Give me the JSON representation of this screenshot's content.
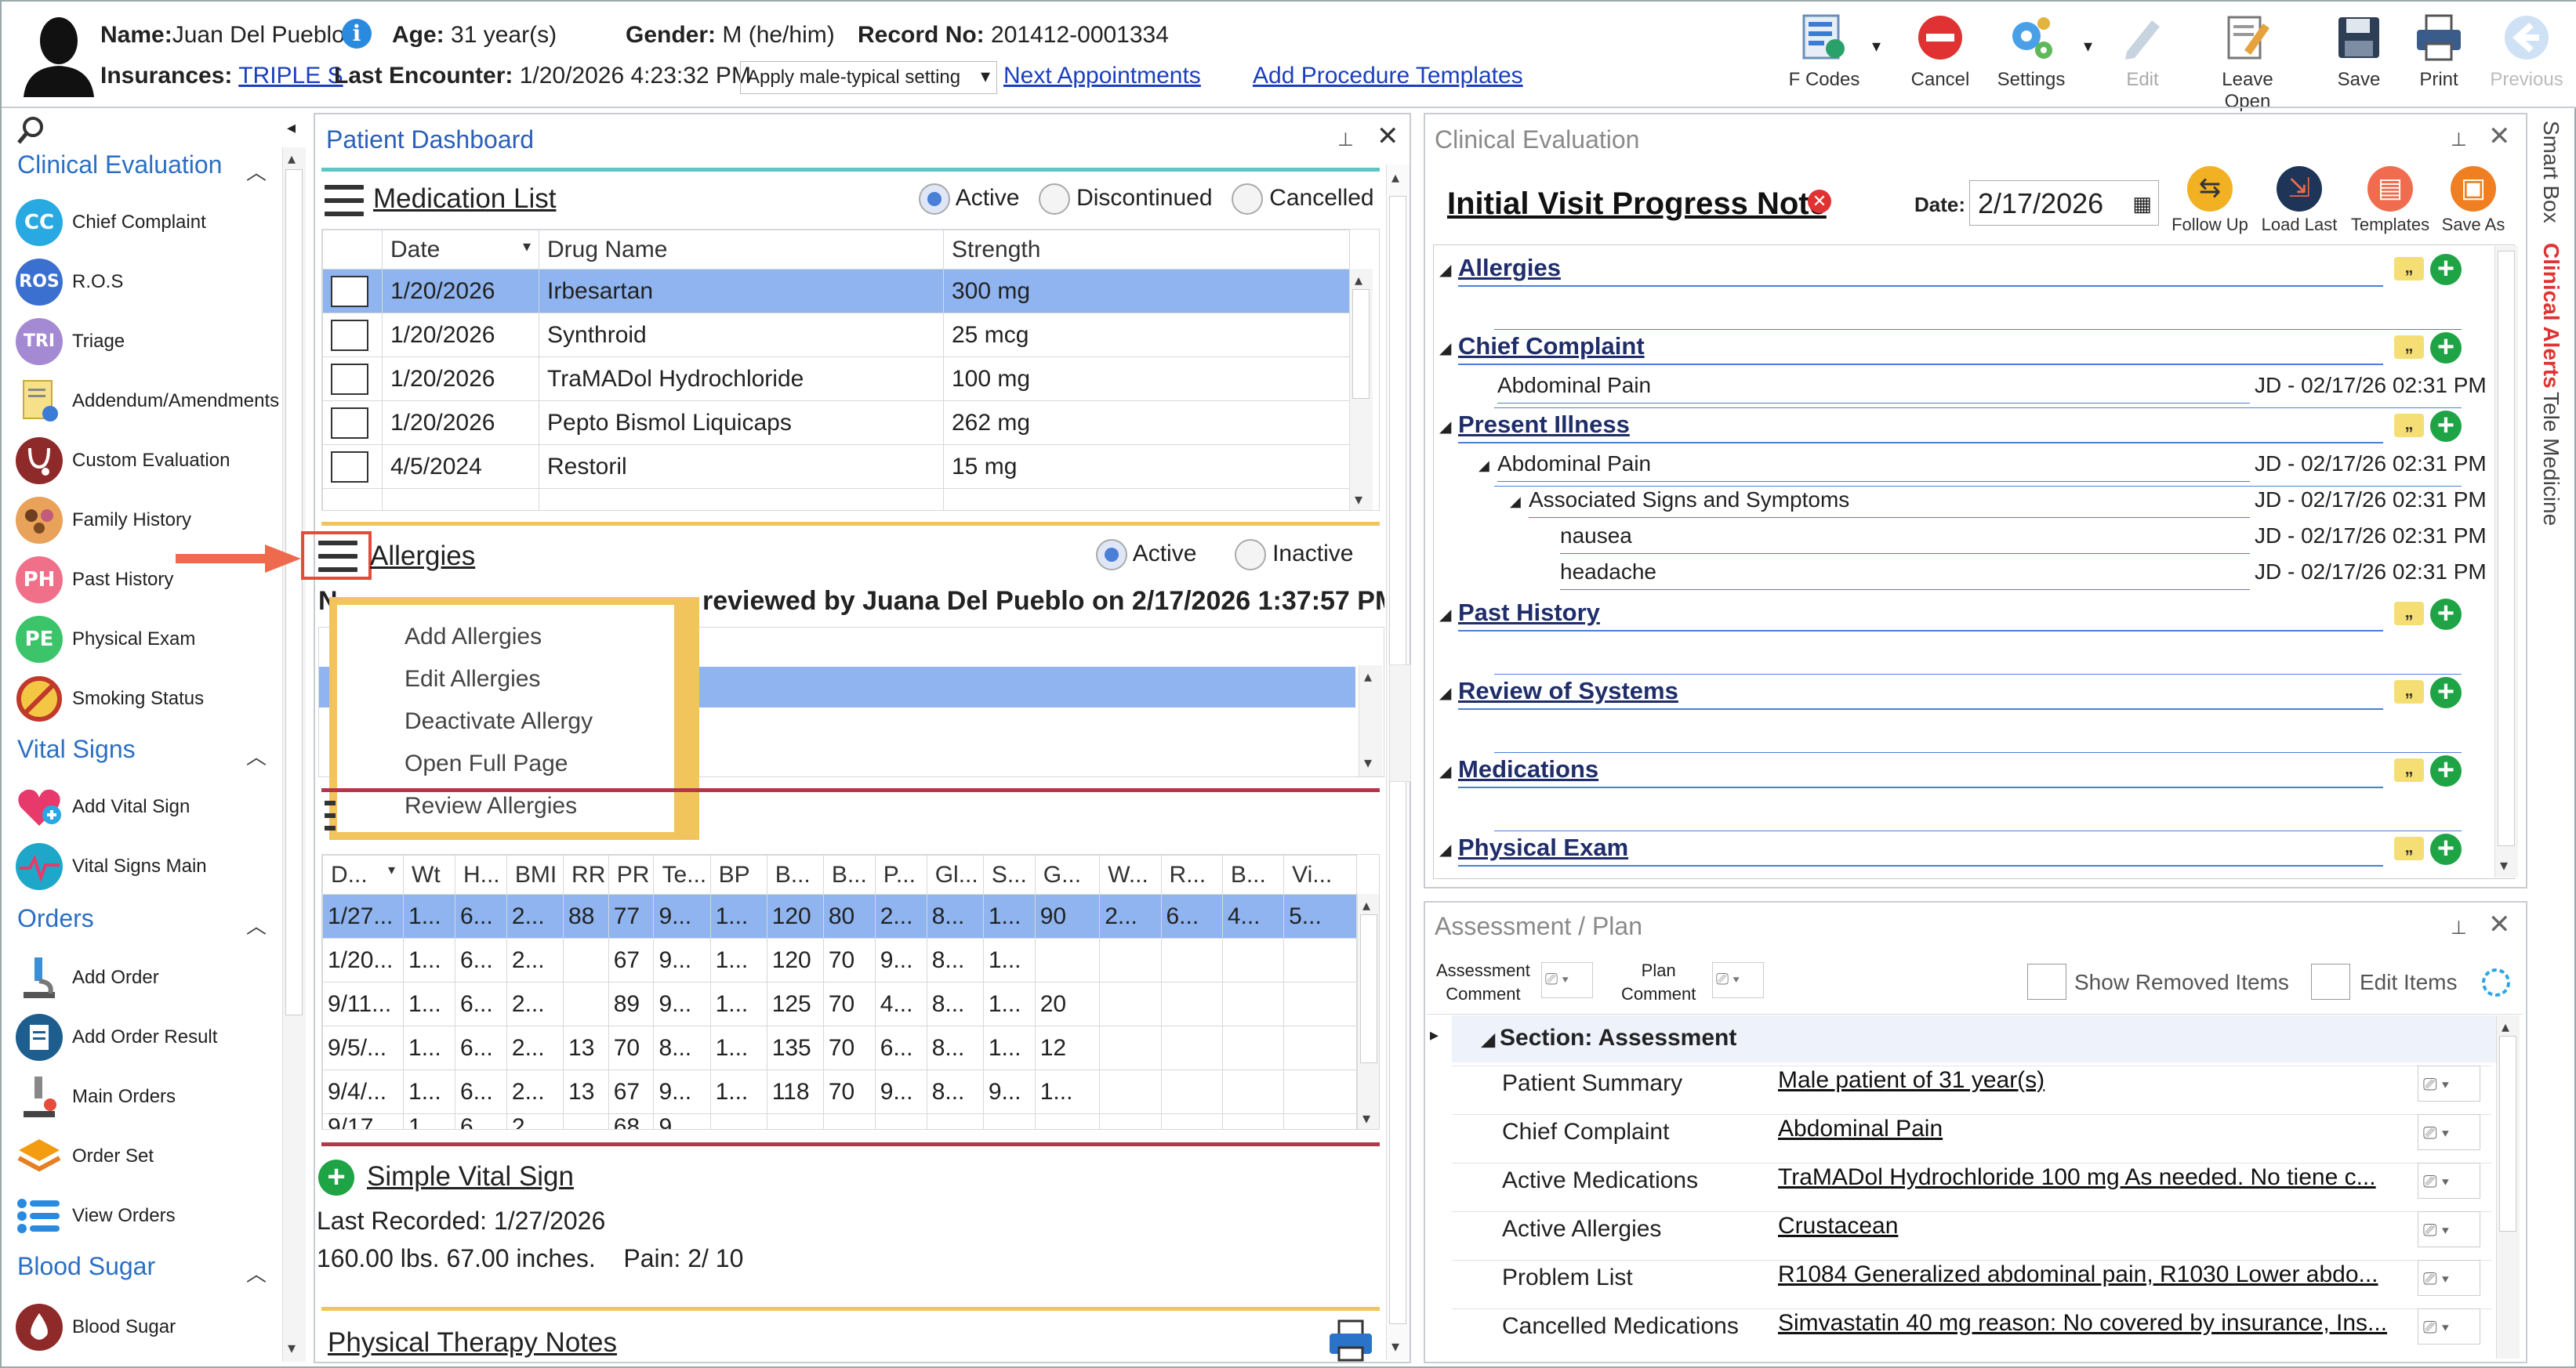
{
  "header": {
    "name_label": "Name:",
    "name": "Juan Del Pueblo",
    "age_label": "Age:",
    "age": "31 year(s)",
    "gender_label": "Gender:",
    "gender": "M (he/him)",
    "record_label": "Record No:",
    "record": "201412-0001334",
    "ins_label": "Insurances:",
    "ins": "TRIPLE S",
    "enc_label": "Last Encounter:",
    "enc": "1/20/2026 4:23:32 PM",
    "setting": "Apply male-typical setting",
    "next_appts": "Next Appointments",
    "add_proc": "Add Procedure Templates"
  },
  "toolbar": {
    "fcodes": "F Codes",
    "cancel": "Cancel",
    "settings": "Settings",
    "edit": "Edit",
    "leave_open": "Leave Open",
    "save": "Save",
    "print": "Print",
    "previous": "Previous"
  },
  "nav": {
    "sections": {
      "clinical": "Clinical Evaluation",
      "vitals": "Vital Signs",
      "orders": "Orders",
      "sugar": "Blood Sugar"
    },
    "items": {
      "cc": "Chief Complaint",
      "ros": "R.O.S",
      "triage": "Triage",
      "addendum": "Addendum/Amendments",
      "custom": "Custom Evaluation",
      "family": "Family History",
      "past": "Past History",
      "physical": "Physical Exam",
      "smoking": "Smoking Status",
      "addvital": "Add Vital Sign",
      "vitalmain": "Vital Signs Main",
      "addorder": "Add Order",
      "addresult": "Add Order Result",
      "mainorders": "Main Orders",
      "orderset": "Order Set",
      "vieworders": "View Orders",
      "bloodsugar": "Blood Sugar"
    },
    "abbr": {
      "cc": "CC",
      "ros": "ROS",
      "triage": "TRI",
      "past": "PH",
      "physical": "PE"
    }
  },
  "dashboard": {
    "title": "Patient Dashboard",
    "med_title": "Medication List",
    "med_active": "Active",
    "med_disc": "Discontinued",
    "med_canc": "Cancelled",
    "med_cols": [
      "Date",
      "Drug Name",
      "Strength"
    ],
    "meds": [
      {
        "date": "1/20/2026",
        "drug": "Irbesartan",
        "strength": "300 mg"
      },
      {
        "date": "1/20/2026",
        "drug": "Synthroid",
        "strength": "25 mcg"
      },
      {
        "date": "1/20/2026",
        "drug": "TraMADol Hydrochloride",
        "strength": "100 mg"
      },
      {
        "date": "1/20/2026",
        "drug": "Pepto Bismol Liquicaps",
        "strength": "262 mg"
      },
      {
        "date": "4/5/2024",
        "drug": "Restoril",
        "strength": "15 mg"
      }
    ],
    "allergy_title": "Allergies",
    "allergy_active": "Active",
    "allergy_inactive": "Inactive",
    "allergy_review": "reviewed by Juana Del Pueblo on 2/17/2026 1:37:57 PM",
    "ctx": [
      "Add Allergies",
      "Edit Allergies",
      "Deactivate Allergy",
      "Open Full Page",
      "Review Allergies"
    ],
    "vital_cols": [
      "D...",
      "Wt",
      "H...",
      "BMI",
      "RR",
      "PR",
      "Te...",
      "BP",
      "B...",
      "B...",
      "P...",
      "Gl...",
      "S...",
      "G...",
      "W...",
      "R...",
      "B...",
      "Vi..."
    ],
    "vitals": [
      [
        "1/27...",
        "1...",
        "6...",
        "2...",
        "88",
        "77",
        "9...",
        "1...",
        "120",
        "80",
        "2...",
        "8...",
        "1...",
        "90",
        "2...",
        "6...",
        "4...",
        "5..."
      ],
      [
        "1/20...",
        "1...",
        "6...",
        "2...",
        "",
        "67",
        "9...",
        "1...",
        "120",
        "70",
        "9...",
        "8...",
        "1...",
        "",
        "",
        "",
        "",
        ""
      ],
      [
        "9/11...",
        "1...",
        "6...",
        "2...",
        "",
        "89",
        "9...",
        "1...",
        "125",
        "70",
        "4...",
        "8...",
        "1...",
        "20",
        "",
        "",
        "",
        ""
      ],
      [
        "9/5/...",
        "1...",
        "6...",
        "2...",
        "13",
        "70",
        "8...",
        "1...",
        "135",
        "70",
        "6...",
        "8...",
        "1...",
        "12",
        "",
        "",
        "",
        ""
      ],
      [
        "9/4/...",
        "1...",
        "6...",
        "2...",
        "13",
        "67",
        "9...",
        "1...",
        "118",
        "70",
        "9...",
        "8...",
        "9...",
        "1...",
        "",
        "",
        "",
        ""
      ],
      [
        "9/17...",
        "1...",
        "6...",
        "2...",
        "",
        "68",
        "9...",
        "",
        "",
        "",
        "",
        "",
        "",
        "",
        "",
        "",
        "",
        ""
      ]
    ],
    "simple_vital": "Simple Vital Sign",
    "last_recorded": "Last Recorded: 1/27/2026",
    "vital_summary": "160.00 lbs. 67.00 inches.    Pain: 2/ 10",
    "pt_notes": "Physical Therapy Notes"
  },
  "clinical": {
    "panel_title": "Clinical Evaluation",
    "note_title": "Initial Visit Progress Note",
    "date_label": "Date:",
    "date": "2/17/2026",
    "btns": {
      "follow": "Follow Up",
      "load": "Load Last",
      "templates": "Templates",
      "saveas": "Save As"
    },
    "sections": {
      "allergies": "Allergies",
      "cc": "Chief Complaint",
      "pi": "Present Illness",
      "ph": "Past History",
      "ros": "Review of Systems",
      "meds": "Medications",
      "pe": "Physical Exam"
    },
    "cc_item": "Abdominal Pain",
    "pi_item": "Abdominal Pain",
    "assoc": "Associated Signs and Symptoms",
    "nausea": "nausea",
    "headache": "headache",
    "stamp": "JD - 02/17/26 02:31 PM"
  },
  "assessment": {
    "panel_title": "Assessment / Plan",
    "acomment": "Assessment\nComment",
    "pcomment": "Plan\nComment",
    "show_removed": "Show Removed Items",
    "edit_items": "Edit Items",
    "section": "Section: Assessment",
    "rows": [
      {
        "label": "Patient Summary",
        "value": "Male patient of 31 year(s)"
      },
      {
        "label": "Chief Complaint",
        "value": "Abdominal Pain"
      },
      {
        "label": "Active Medications",
        "value": "TraMADol Hydrochloride 100 mg As needed.  No tiene c..."
      },
      {
        "label": "Active Allergies",
        "value": "Crustacean"
      },
      {
        "label": "Problem List",
        "value": "R1084 Generalized abdominal pain, R1030 Lower abdo..."
      },
      {
        "label": "Cancelled Medications",
        "value": "Simvastatin 40 mg reason: No covered by insurance, Ins..."
      }
    ]
  },
  "side_tabs": {
    "smart": "Smart Box",
    "alerts": "Clinical Alerts",
    "tele": "Tele Medicine"
  }
}
